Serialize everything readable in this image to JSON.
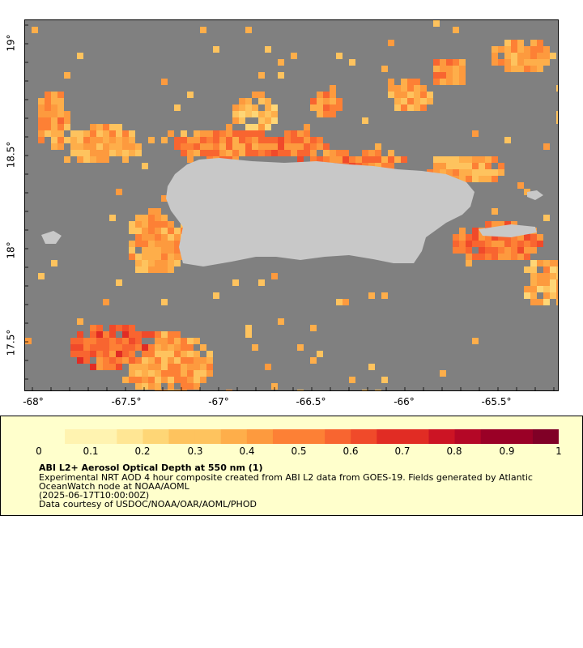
{
  "map": {
    "y_ticks": [
      {
        "lat": 19.0,
        "label": "19°"
      },
      {
        "lat": 18.5,
        "label": "18.5°"
      },
      {
        "lat": 18.0,
        "label": "18°"
      },
      {
        "lat": 17.5,
        "label": "17.5°"
      }
    ],
    "x_ticks": [
      {
        "lon": -68.0,
        "label": "-68°"
      },
      {
        "lon": -67.5,
        "label": "-67.5°"
      },
      {
        "lon": -67.0,
        "label": "-67°"
      },
      {
        "lon": -66.5,
        "label": "-66.5°"
      },
      {
        "lon": -66.0,
        "label": "-66°"
      },
      {
        "lon": -65.5,
        "label": "-65.5°"
      }
    ],
    "extent": {
      "lon_min": -68.04,
      "lon_max": -65.18,
      "lat_min": 17.3,
      "lat_max": 19.22
    },
    "colors": {
      "water": "#808080",
      "land": "#c8c8c8"
    }
  },
  "legend": {
    "colorbar_ticks": [
      "0",
      "0.1",
      "0.2",
      "0.3",
      "0.4",
      "0.5",
      "0.6",
      "0.7",
      "0.8",
      "0.9",
      "1"
    ],
    "colorbar_colors": [
      "#ffffcc",
      "#fff3b0",
      "#ffe694",
      "#fed676",
      "#fec35e",
      "#feae4a",
      "#fd9a3e",
      "#fd8035",
      "#f86530",
      "#f04a2a",
      "#e12c24",
      "#cc1424",
      "#b40726",
      "#9a0026",
      "#800026"
    ],
    "title": "ABI L2+ Aerosol Optical Depth at 550 nm (1)",
    "lines": [
      "Experimental NRT AOD 4 hour composite created from ABI L2 data from GOES-19. Fields generated by Atlantic",
      "OceanWatch node at NOAA/AOML",
      "(2025-06-17T10:00:00Z)",
      "Data courtesy of USDOC/NOAA/OAR/AOML/PHOD"
    ]
  }
}
